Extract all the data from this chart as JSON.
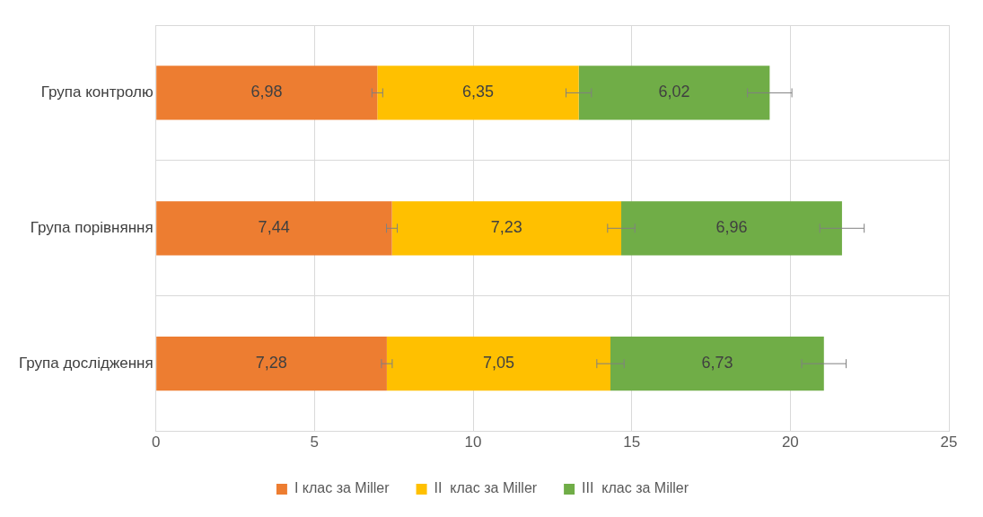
{
  "chart_data": {
    "type": "bar",
    "orientation": "horizontal",
    "stacked": true,
    "categories": [
      "Група контролю",
      "Група порівняння",
      "Група дослідження"
    ],
    "series": [
      {
        "name": "I клас за Miller",
        "color": "#ed7d31",
        "values": [
          6.98,
          7.44,
          7.28
        ],
        "value_labels": [
          "6,98",
          "7,44",
          "7,28"
        ],
        "errors": [
          0.17,
          0.17,
          0.17
        ]
      },
      {
        "name": "II  клас за Miller",
        "color": "#ffc000",
        "values": [
          6.35,
          7.23,
          7.05
        ],
        "value_labels": [
          "6,35",
          "7,23",
          "7,05"
        ],
        "errors": [
          0.4,
          0.43,
          0.43
        ]
      },
      {
        "name": "III  клас за Miller",
        "color": "#70ad47",
        "values": [
          6.02,
          6.96,
          6.73
        ],
        "value_labels": [
          "6,02",
          "6,96",
          "6,73"
        ],
        "errors": [
          0.7,
          0.7,
          0.7
        ]
      }
    ],
    "xlim": [
      0,
      25
    ],
    "xticks": [
      0,
      5,
      10,
      15,
      20,
      25
    ],
    "grid": true,
    "legend": "bottom"
  }
}
